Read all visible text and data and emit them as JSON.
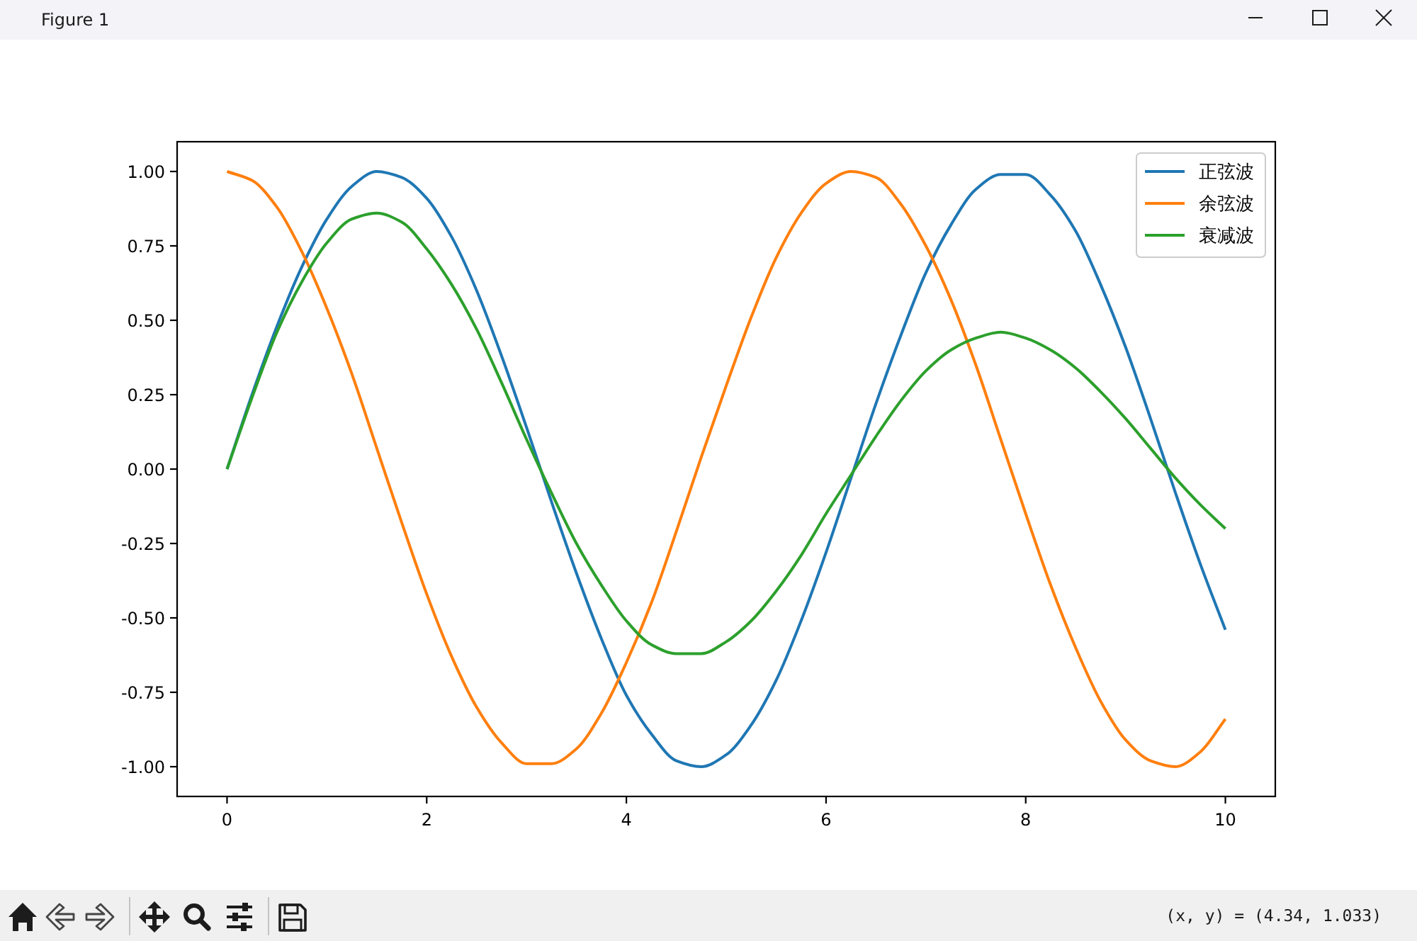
{
  "chart_data": {
    "type": "line",
    "annotations": [
      "Figure 1",
      "(x, y) = (4.34, 1.033)"
    ],
    "x": [
      0,
      0.25,
      0.5,
      0.75,
      1,
      1.25,
      1.5,
      1.75,
      2,
      2.25,
      2.5,
      2.75,
      3,
      3.25,
      3.5,
      3.75,
      4,
      4.25,
      4.5,
      4.75,
      5,
      5.25,
      5.5,
      5.75,
      6,
      6.25,
      6.5,
      6.75,
      7,
      7.25,
      7.5,
      7.75,
      8,
      8.25,
      8.5,
      8.75,
      9,
      9.25,
      9.5,
      9.75,
      10
    ],
    "series": [
      {
        "name": "正弦波",
        "color": "#1f77b4",
        "values": [
          0,
          0.25,
          0.48,
          0.68,
          0.84,
          0.95,
          1.0,
          0.98,
          0.91,
          0.78,
          0.6,
          0.38,
          0.14,
          -0.11,
          -0.35,
          -0.57,
          -0.76,
          -0.89,
          -0.98,
          -1.0,
          -0.96,
          -0.86,
          -0.71,
          -0.51,
          -0.28,
          -0.03,
          0.22,
          0.45,
          0.66,
          0.82,
          0.94,
          0.99,
          0.99,
          0.92,
          0.8,
          0.62,
          0.41,
          0.17,
          -0.08,
          -0.32,
          -0.54
        ]
      },
      {
        "name": "余弦波",
        "color": "#ff7f0e",
        "values": [
          1.0,
          0.97,
          0.88,
          0.73,
          0.54,
          0.32,
          0.07,
          -0.18,
          -0.42,
          -0.63,
          -0.8,
          -0.92,
          -0.99,
          -0.99,
          -0.94,
          -0.82,
          -0.65,
          -0.45,
          -0.21,
          0.04,
          0.28,
          0.51,
          0.71,
          0.86,
          0.96,
          1.0,
          0.98,
          0.89,
          0.75,
          0.57,
          0.35,
          0.1,
          -0.15,
          -0.39,
          -0.6,
          -0.78,
          -0.91,
          -0.98,
          -1.0,
          -0.95,
          -0.84
        ]
      },
      {
        "name": "衰减波",
        "color": "#2ca02c",
        "values": [
          0,
          0.24,
          0.46,
          0.63,
          0.76,
          0.84,
          0.86,
          0.83,
          0.74,
          0.62,
          0.47,
          0.29,
          0.1,
          -0.08,
          -0.25,
          -0.39,
          -0.51,
          -0.59,
          -0.62,
          -0.62,
          -0.58,
          -0.51,
          -0.41,
          -0.29,
          -0.15,
          -0.02,
          0.11,
          0.23,
          0.33,
          0.4,
          0.44,
          0.46,
          0.44,
          0.4,
          0.34,
          0.26,
          0.17,
          0.07,
          -0.03,
          -0.12,
          -0.2
        ]
      }
    ],
    "xlim": [
      -0.5,
      10.5
    ],
    "ylim": [
      -1.1,
      1.1
    ],
    "xticks": [
      0,
      2,
      4,
      6,
      8,
      10
    ],
    "yticks": [
      {
        "value": -1,
        "label": "-1.00"
      },
      {
        "value": -0.75,
        "label": "-0.75"
      },
      {
        "value": -0.5,
        "label": "-0.50"
      },
      {
        "value": -0.25,
        "label": "-0.25"
      },
      {
        "value": 0,
        "label": "0.00"
      },
      {
        "value": 0.25,
        "label": "0.25"
      },
      {
        "value": 0.5,
        "label": "0.50"
      },
      {
        "value": 0.75,
        "label": "0.75"
      },
      {
        "value": 1,
        "label": "1.00"
      }
    ],
    "legend": "top right",
    "line_style": "solid"
  }
}
